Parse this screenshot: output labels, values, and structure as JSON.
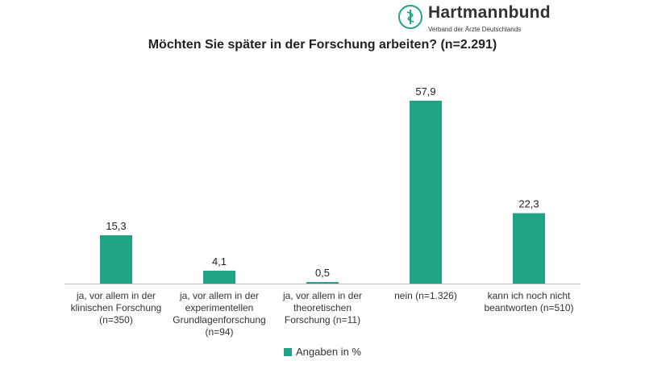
{
  "brand": {
    "name": "Hartmannbund",
    "subtitle": "Verband der Ärzte Deutschlands",
    "logo_icon": "caduceus-icon",
    "color": "#1fa383"
  },
  "chart_data": {
    "type": "bar",
    "title": "Möchten Sie später in der Forschung arbeiten? (n=2.291)",
    "categories": [
      [
        "ja, vor allem in der",
        "klinischen Forschung",
        "(n=350)"
      ],
      [
        "ja, vor allem in der",
        "experimentellen",
        "Grundlagenforschung",
        "(n=94)"
      ],
      [
        "ja, vor allem in der",
        "theoretischen",
        "Forschung (n=11)"
      ],
      [
        "nein (n=1.326)"
      ],
      [
        "kann ich noch nicht",
        "beantworten (n=510)"
      ]
    ],
    "series": [
      {
        "name": "Angaben in %",
        "values": [
          15.3,
          4.1,
          0.5,
          57.9,
          22.3
        ],
        "labels": [
          "15,3",
          "4,1",
          "0,5",
          "57,9",
          "22,3"
        ],
        "color": "#1fa383"
      }
    ],
    "xlabel": "",
    "ylabel": "",
    "ylim": [
      0,
      57.9
    ],
    "grid": false,
    "y_axis_visible": false,
    "legend_position": "bottom"
  }
}
